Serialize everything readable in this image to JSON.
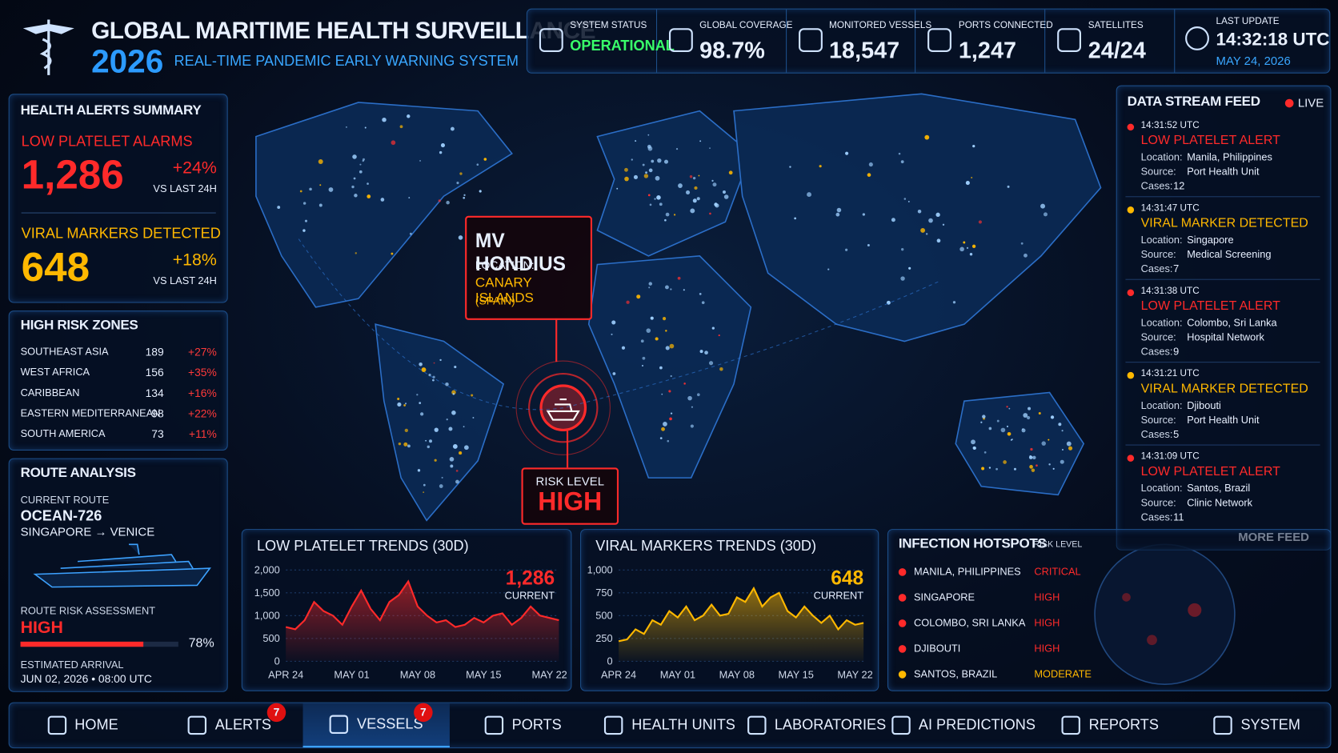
{
  "header": {
    "title": "GLOBAL MARITIME HEALTH SURVEILLANCE",
    "year": "2026",
    "subtitle": "REAL-TIME PANDEMIC EARLY WARNING SYSTEM"
  },
  "status": [
    {
      "label": "SYSTEM STATUS",
      "value": "OPERATIONAL"
    },
    {
      "label": "GLOBAL COVERAGE",
      "value": "98.7%"
    },
    {
      "label": "MONITORED VESSELS",
      "value": "18,547"
    },
    {
      "label": "PORTS CONNECTED",
      "value": "1,247"
    },
    {
      "label": "SATELLITES",
      "value": "24/24"
    }
  ],
  "last_update": {
    "label": "LAST UPDATE",
    "time": "14:32:18 UTC",
    "date": "MAY 24, 2026"
  },
  "alerts_summary": {
    "title": "HEALTH ALERTS SUMMARY",
    "items": [
      {
        "label": "LOW PLATELET ALARMS",
        "value": "1,286",
        "change": "+24%",
        "note": "VS LAST 24H"
      },
      {
        "label": "VIRAL MARKERS DETECTED",
        "value": "648",
        "change": "+18%",
        "note": "VS LAST 24H"
      }
    ]
  },
  "high_risk_zones": {
    "title": "HIGH RISK ZONES",
    "rows": [
      [
        "SOUTHEAST ASIA",
        "189",
        "+27%"
      ],
      [
        "WEST AFRICA",
        "156",
        "+35%"
      ],
      [
        "CARIBBEAN",
        "134",
        "+16%"
      ],
      [
        "EASTERN MEDITERRANEAN",
        "98",
        "+22%"
      ],
      [
        "SOUTH AMERICA",
        "73",
        "+11%"
      ]
    ]
  },
  "route_analysis": {
    "title": "ROUTE ANALYSIS",
    "current_route_label": "CURRENT ROUTE",
    "route": "OCEAN-726",
    "path": "SINGAPORE → VENICE",
    "risk_label": "ROUTE RISK ASSESSMENT",
    "risk": "HIGH",
    "risk_percent": {
      "value": 78,
      "label": "78%"
    },
    "eta_label": "ESTIMATED ARRIVAL",
    "eta": "JUN 02, 2026 • 08:00 UTC"
  },
  "map": {
    "vessel": "MV HONDIUS",
    "location_label": "LOCATION:",
    "location": "CANARY ISLANDS",
    "country": "(SPAIN)",
    "risk_label": "RISK LEVEL",
    "risk": "HIGH"
  },
  "feed": {
    "title": "DATA STREAM FEED",
    "live": "LIVE",
    "location_label": "Location:",
    "source_label": "Source:",
    "cases_label": "Cases:",
    "more": "MORE FEED",
    "items": [
      {
        "time": "14:31:52 UTC",
        "title": "LOW PLATELET ALERT",
        "location": "Manila, Philippines",
        "source": "Port Health Unit",
        "cases": "12",
        "color": "#ff2a2a"
      },
      {
        "time": "14:31:47 UTC",
        "title": "VIRAL MARKER DETECTED",
        "location": "Singapore",
        "source": "Medical Screening",
        "cases": "7",
        "color": "#ffb800"
      },
      {
        "time": "14:31:38 UTC",
        "title": "LOW PLATELET ALERT",
        "location": "Colombo, Sri Lanka",
        "source": "Hospital Network",
        "cases": "9",
        "color": "#ff2a2a"
      },
      {
        "time": "14:31:21 UTC",
        "title": "VIRAL MARKER DETECTED",
        "location": "Djibouti",
        "source": "Port Health Unit",
        "cases": "5",
        "color": "#ffb800"
      },
      {
        "time": "14:31:09 UTC",
        "title": "LOW PLATELET ALERT",
        "location": "Santos, Brazil",
        "source": "Clinic Network",
        "cases": "11",
        "color": "#ff2a2a"
      }
    ]
  },
  "hotspots": {
    "title": "INFECTION HOTSPOTS",
    "risk_label": "RISK LEVEL",
    "rows": [
      {
        "place": "MANILA, PHILIPPINES",
        "level": "CRITICAL",
        "color": "#ff2a2a"
      },
      {
        "place": "SINGAPORE",
        "level": "HIGH",
        "color": "#ff2a2a"
      },
      {
        "place": "COLOMBO, SRI LANKA",
        "level": "HIGH",
        "color": "#ff2a2a"
      },
      {
        "place": "DJIBOUTI",
        "level": "HIGH",
        "color": "#ff2a2a"
      },
      {
        "place": "SANTOS, BRAZIL",
        "level": "MODERATE",
        "color": "#ffb800"
      }
    ]
  },
  "nav": [
    {
      "label": "HOME"
    },
    {
      "label": "ALERTS",
      "badge": "7"
    },
    {
      "label": "VESSELS",
      "badge": "7",
      "active": true
    },
    {
      "label": "PORTS"
    },
    {
      "label": "HEALTH UNITS"
    },
    {
      "label": "LABORATORIES"
    },
    {
      "label": "AI PREDICTIONS"
    },
    {
      "label": "REPORTS"
    },
    {
      "label": "SYSTEM"
    }
  ],
  "chart_data": [
    {
      "type": "line",
      "title": "LOW PLATELET TRENDS (30D)",
      "current": "1,286",
      "current_label": "CURRENT",
      "color": "#ff2a2a",
      "grid": true,
      "categories": [
        "APR 24",
        null,
        null,
        null,
        null,
        null,
        null,
        "MAY 01",
        null,
        null,
        null,
        null,
        null,
        null,
        "MAY 08",
        null,
        null,
        null,
        null,
        null,
        null,
        "MAY 15",
        null,
        null,
        null,
        null,
        null,
        null,
        "MAY 22",
        null
      ],
      "values": [
        750,
        700,
        900,
        1300,
        1100,
        1000,
        800,
        1200,
        1550,
        1150,
        900,
        1300,
        1450,
        1750,
        1200,
        1000,
        850,
        900,
        750,
        800,
        950,
        850,
        1000,
        1050,
        800,
        950,
        1200,
        1000,
        950,
        900
      ],
      "ylim": [
        0,
        2000
      ],
      "yticks": [
        0,
        500,
        {
          "value": 1000,
          "label": "1,000"
        },
        {
          "value": 1500,
          "label": "1,500"
        },
        {
          "value": 2000,
          "label": "2,000"
        }
      ]
    },
    {
      "type": "line",
      "title": "VIRAL MARKERS TRENDS (30D)",
      "current": "648",
      "current_label": "CURRENT",
      "color": "#ffb800",
      "grid": true,
      "categories": [
        "APR 24",
        null,
        null,
        null,
        null,
        null,
        null,
        "MAY 01",
        null,
        null,
        null,
        null,
        null,
        null,
        "MAY 08",
        null,
        null,
        null,
        null,
        null,
        null,
        "MAY 15",
        null,
        null,
        null,
        null,
        null,
        null,
        "MAY 22",
        null
      ],
      "values": [
        220,
        240,
        350,
        300,
        450,
        400,
        550,
        480,
        600,
        450,
        500,
        620,
        500,
        520,
        700,
        650,
        800,
        600,
        700,
        750,
        550,
        480,
        600,
        500,
        420,
        500,
        350,
        450,
        400,
        420
      ],
      "ylim": [
        0,
        1000
      ],
      "yticks": [
        0,
        250,
        500,
        750,
        {
          "value": 1000,
          "label": "1,000"
        }
      ]
    }
  ]
}
